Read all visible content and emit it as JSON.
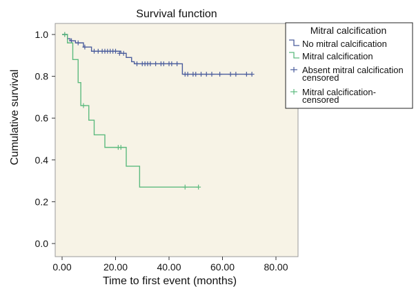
{
  "chart_data": {
    "type": "line",
    "title": "Survival function",
    "xlabel": "Time to first event (months)",
    "ylabel": "Cumulative survival",
    "xlim": [
      0,
      80
    ],
    "ylim": [
      0,
      1.0
    ],
    "x_ticks": [
      0,
      20,
      40,
      60,
      80
    ],
    "x_tick_labels": [
      "0.00",
      "20.00",
      "40.00",
      "60.00",
      "80.00"
    ],
    "y_ticks": [
      0,
      0.2,
      0.4,
      0.6,
      0.8,
      1.0
    ],
    "y_tick_labels": [
      "0.0",
      "0.2",
      "0.4",
      "0.6",
      "0.8",
      "1.0"
    ],
    "grid": false,
    "legend_position": "right",
    "colors": {
      "background": "#f7f3e6",
      "no_mitral": "#4a5c9c",
      "mitral": "#5cba7e"
    },
    "legend": {
      "title": "Mitral calcification",
      "entries": [
        {
          "label": "No mitral calcification",
          "symbol": "step",
          "color": "#4a5c9c"
        },
        {
          "label": "Mitral calcification",
          "symbol": "step",
          "color": "#5cba7e"
        },
        {
          "label": "Absent mitral calcification censored",
          "lines": [
            "Absent mitral calcification",
            "censored"
          ],
          "symbol": "plus",
          "color": "#4a5c9c"
        },
        {
          "label": "Mitral calcification-censored",
          "lines": [
            "Mitral calcification-",
            "censored"
          ],
          "symbol": "plus",
          "color": "#5cba7e"
        }
      ]
    },
    "series": [
      {
        "name": "No mitral calcification",
        "color": "#4a5c9c",
        "steps": [
          [
            0,
            1.0
          ],
          [
            2,
            0.98
          ],
          [
            3,
            0.97
          ],
          [
            5,
            0.96
          ],
          [
            8,
            0.94
          ],
          [
            11,
            0.92
          ],
          [
            22,
            0.91
          ],
          [
            24,
            0.89
          ],
          [
            26,
            0.87
          ],
          [
            27,
            0.86
          ],
          [
            45,
            0.81
          ],
          [
            71,
            0.81
          ]
        ],
        "censored": [
          [
            1,
            1.0
          ],
          [
            3.5,
            0.97
          ],
          [
            6,
            0.96
          ],
          [
            8.5,
            0.94
          ],
          [
            12,
            0.92
          ],
          [
            13.5,
            0.92
          ],
          [
            15,
            0.92
          ],
          [
            16,
            0.92
          ],
          [
            17,
            0.92
          ],
          [
            18,
            0.92
          ],
          [
            19,
            0.92
          ],
          [
            20,
            0.92
          ],
          [
            21.5,
            0.91
          ],
          [
            23,
            0.91
          ],
          [
            28,
            0.86
          ],
          [
            30,
            0.86
          ],
          [
            31,
            0.86
          ],
          [
            32,
            0.86
          ],
          [
            33,
            0.86
          ],
          [
            35,
            0.86
          ],
          [
            37,
            0.86
          ],
          [
            38,
            0.86
          ],
          [
            40,
            0.86
          ],
          [
            41,
            0.86
          ],
          [
            43,
            0.86
          ],
          [
            46,
            0.81
          ],
          [
            47,
            0.81
          ],
          [
            49,
            0.81
          ],
          [
            50,
            0.81
          ],
          [
            52,
            0.81
          ],
          [
            54,
            0.81
          ],
          [
            56,
            0.81
          ],
          [
            59,
            0.81
          ],
          [
            63,
            0.81
          ],
          [
            65,
            0.81
          ],
          [
            69,
            0.81
          ],
          [
            71,
            0.81
          ]
        ]
      },
      {
        "name": "Mitral calcification",
        "color": "#5cba7e",
        "steps": [
          [
            0,
            1.0
          ],
          [
            2,
            0.96
          ],
          [
            4,
            0.88
          ],
          [
            6,
            0.77
          ],
          [
            7,
            0.66
          ],
          [
            10,
            0.59
          ],
          [
            12,
            0.52
          ],
          [
            16,
            0.46
          ],
          [
            24,
            0.37
          ],
          [
            29,
            0.27
          ],
          [
            51,
            0.27
          ]
        ],
        "censored": [
          [
            1,
            1.0
          ],
          [
            8,
            0.66
          ],
          [
            21,
            0.46
          ],
          [
            22,
            0.46
          ],
          [
            46,
            0.27
          ],
          [
            51,
            0.27
          ]
        ]
      }
    ]
  }
}
